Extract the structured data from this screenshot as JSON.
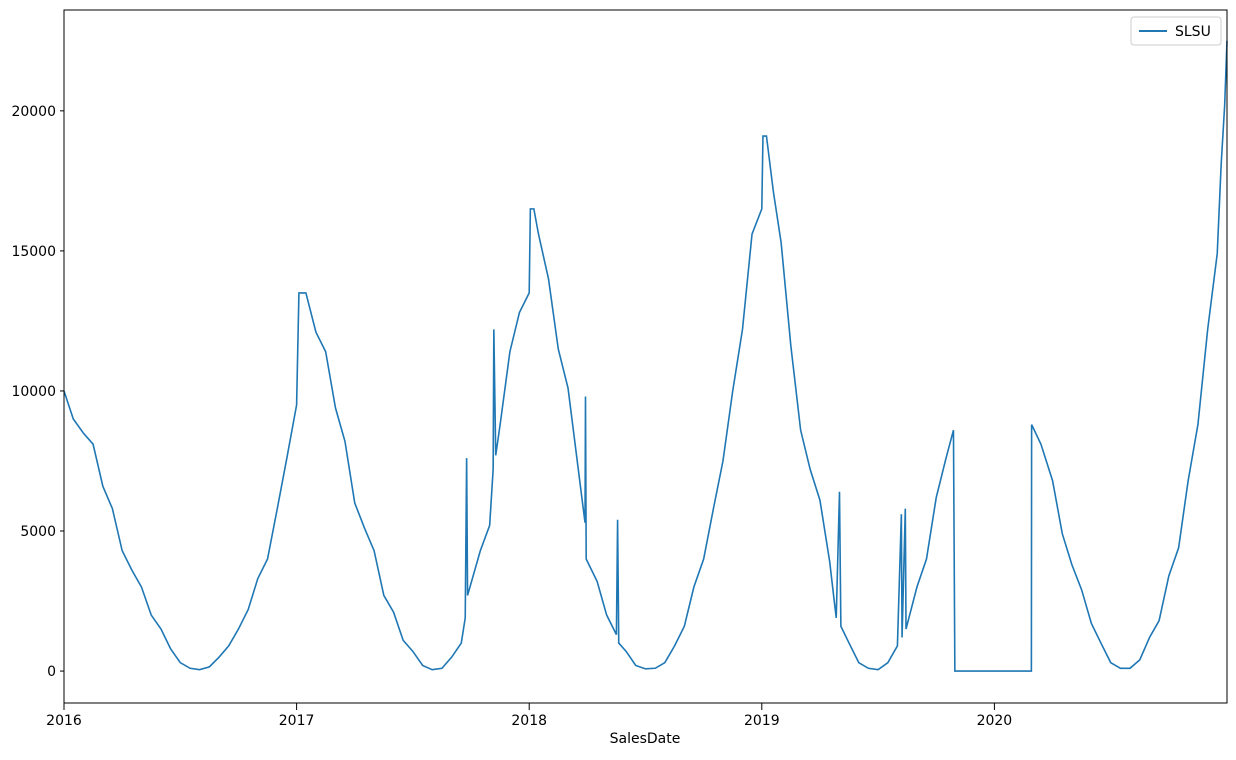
{
  "chart_data": {
    "type": "line",
    "xlabel": "SalesDate",
    "x": [
      2016.0,
      2016.04,
      2016.083,
      2016.125,
      2016.167,
      2016.208,
      2016.25,
      2016.292,
      2016.333,
      2016.375,
      2016.417,
      2016.458,
      2016.5,
      2016.542,
      2016.583,
      2016.625,
      2016.667,
      2016.708,
      2016.75,
      2016.792,
      2016.833,
      2016.875,
      2016.917,
      2016.958,
      2017.0,
      2017.01,
      2017.04,
      2017.083,
      2017.125,
      2017.167,
      2017.208,
      2017.25,
      2017.292,
      2017.333,
      2017.375,
      2017.417,
      2017.458,
      2017.5,
      2017.542,
      2017.583,
      2017.625,
      2017.667,
      2017.708,
      2017.725,
      2017.731,
      2017.735,
      2017.79,
      2017.83,
      2017.845,
      2017.848,
      2017.856,
      2017.875,
      2017.917,
      2017.958,
      2018.0,
      2018.005,
      2018.02,
      2018.04,
      2018.083,
      2018.125,
      2018.167,
      2018.208,
      2018.24,
      2018.242,
      2018.245,
      2018.292,
      2018.333,
      2018.375,
      2018.38,
      2018.385,
      2018.417,
      2018.458,
      2018.5,
      2018.542,
      2018.583,
      2018.625,
      2018.667,
      2018.708,
      2018.75,
      2018.792,
      2018.833,
      2018.875,
      2018.917,
      2018.958,
      2019.0,
      2019.005,
      2019.02,
      2019.05,
      2019.083,
      2019.125,
      2019.167,
      2019.208,
      2019.25,
      2019.292,
      2019.31,
      2019.32,
      2019.334,
      2019.34,
      2019.375,
      2019.417,
      2019.458,
      2019.5,
      2019.542,
      2019.583,
      2019.6,
      2019.603,
      2019.617,
      2019.62,
      2019.667,
      2019.708,
      2019.75,
      2019.792,
      2019.824,
      2019.83,
      2020.159,
      2020.16,
      2020.2,
      2020.25,
      2020.292,
      2020.333,
      2020.375,
      2020.417,
      2020.458,
      2020.5,
      2020.542,
      2020.583,
      2020.625,
      2020.667,
      2020.708,
      2020.75,
      2020.792,
      2020.833,
      2020.875,
      2020.917,
      2020.958,
      2020.975,
      2020.99,
      2021.0
    ],
    "series": [
      {
        "name": "SLSU",
        "color": "#1f77b4",
        "values": [
          10000,
          9000,
          8500,
          8100,
          6600,
          5800,
          4300,
          3600,
          3000,
          2000,
          1500,
          800,
          300,
          100,
          50,
          150,
          500,
          900,
          1500,
          2200,
          3300,
          4000,
          5800,
          7600,
          9500,
          13500,
          13500,
          12100,
          11400,
          9400,
          8200,
          6000,
          5100,
          4300,
          2700,
          2100,
          1100,
          700,
          200,
          50,
          100,
          500,
          1000,
          1900,
          7600,
          2700,
          4300,
          5200,
          7200,
          12200,
          7700,
          8800,
          11400,
          12800,
          13500,
          16500,
          16500,
          15600,
          14000,
          11500,
          10100,
          7400,
          5300,
          9800,
          4000,
          3200,
          2000,
          1300,
          5400,
          1000,
          700,
          200,
          80,
          100,
          300,
          900,
          1600,
          3000,
          4000,
          5800,
          7500,
          10000,
          12200,
          15600,
          16500,
          19100,
          19100,
          17100,
          15300,
          11600,
          8600,
          7200,
          6100,
          3900,
          2600,
          1900,
          6400,
          1600,
          1000,
          300,
          100,
          50,
          300,
          900,
          5600,
          1200,
          5800,
          1500,
          3000,
          4000,
          6200,
          7600,
          8600,
          0,
          0,
          8800,
          8100,
          6800,
          4900,
          3800,
          2900,
          1700,
          1000,
          300,
          100,
          100,
          400,
          1200,
          1800,
          3400,
          4400,
          6800,
          8800,
          12200,
          14900,
          18100,
          20200,
          22500
        ]
      }
    ],
    "xlim": [
      2016,
      2021
    ],
    "xticks": [
      2016,
      2017,
      2018,
      2019,
      2020
    ],
    "ylim": [
      -1140,
      23600
    ],
    "yticks": [
      0,
      5000,
      10000,
      15000,
      20000
    ],
    "legend": "upper right"
  }
}
